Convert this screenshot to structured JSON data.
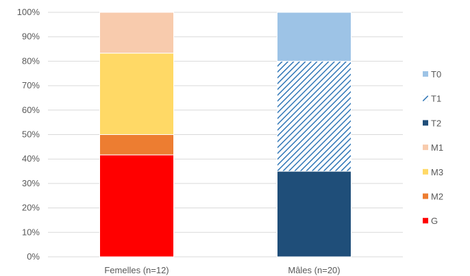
{
  "chart_data": {
    "type": "bar",
    "stacked": true,
    "percent": true,
    "title": "",
    "xlabel": "",
    "ylabel": "",
    "ylim": [
      0,
      100
    ],
    "y_ticks": [
      "0%",
      "10%",
      "20%",
      "30%",
      "40%",
      "50%",
      "60%",
      "70%",
      "80%",
      "90%",
      "100%"
    ],
    "categories": [
      "Femelles (n=12)",
      "Mâles (n=20)"
    ],
    "legend_position": "right",
    "grid": true,
    "series": [
      {
        "name": "G",
        "color": "#ff0000",
        "pattern": "solid",
        "values": [
          41.7,
          0
        ]
      },
      {
        "name": "M2",
        "color": "#ed7d31",
        "pattern": "solid",
        "values": [
          8.3,
          0
        ]
      },
      {
        "name": "M3",
        "color": "#ffd966",
        "pattern": "solid",
        "values": [
          33.3,
          0
        ]
      },
      {
        "name": "M1",
        "color": "#f8cbad",
        "pattern": "solid",
        "values": [
          16.7,
          0
        ]
      },
      {
        "name": "T2",
        "color": "#1f4e79",
        "pattern": "solid",
        "values": [
          0,
          35
        ]
      },
      {
        "name": "T1",
        "color": "#2e75b6",
        "pattern": "hatch",
        "values": [
          0,
          45
        ]
      },
      {
        "name": "T0",
        "color": "#9dc3e6",
        "pattern": "solid",
        "values": [
          0,
          20
        ]
      }
    ],
    "legend_order": [
      "T0",
      "T1",
      "T2",
      "M1",
      "M3",
      "M2",
      "G"
    ]
  }
}
